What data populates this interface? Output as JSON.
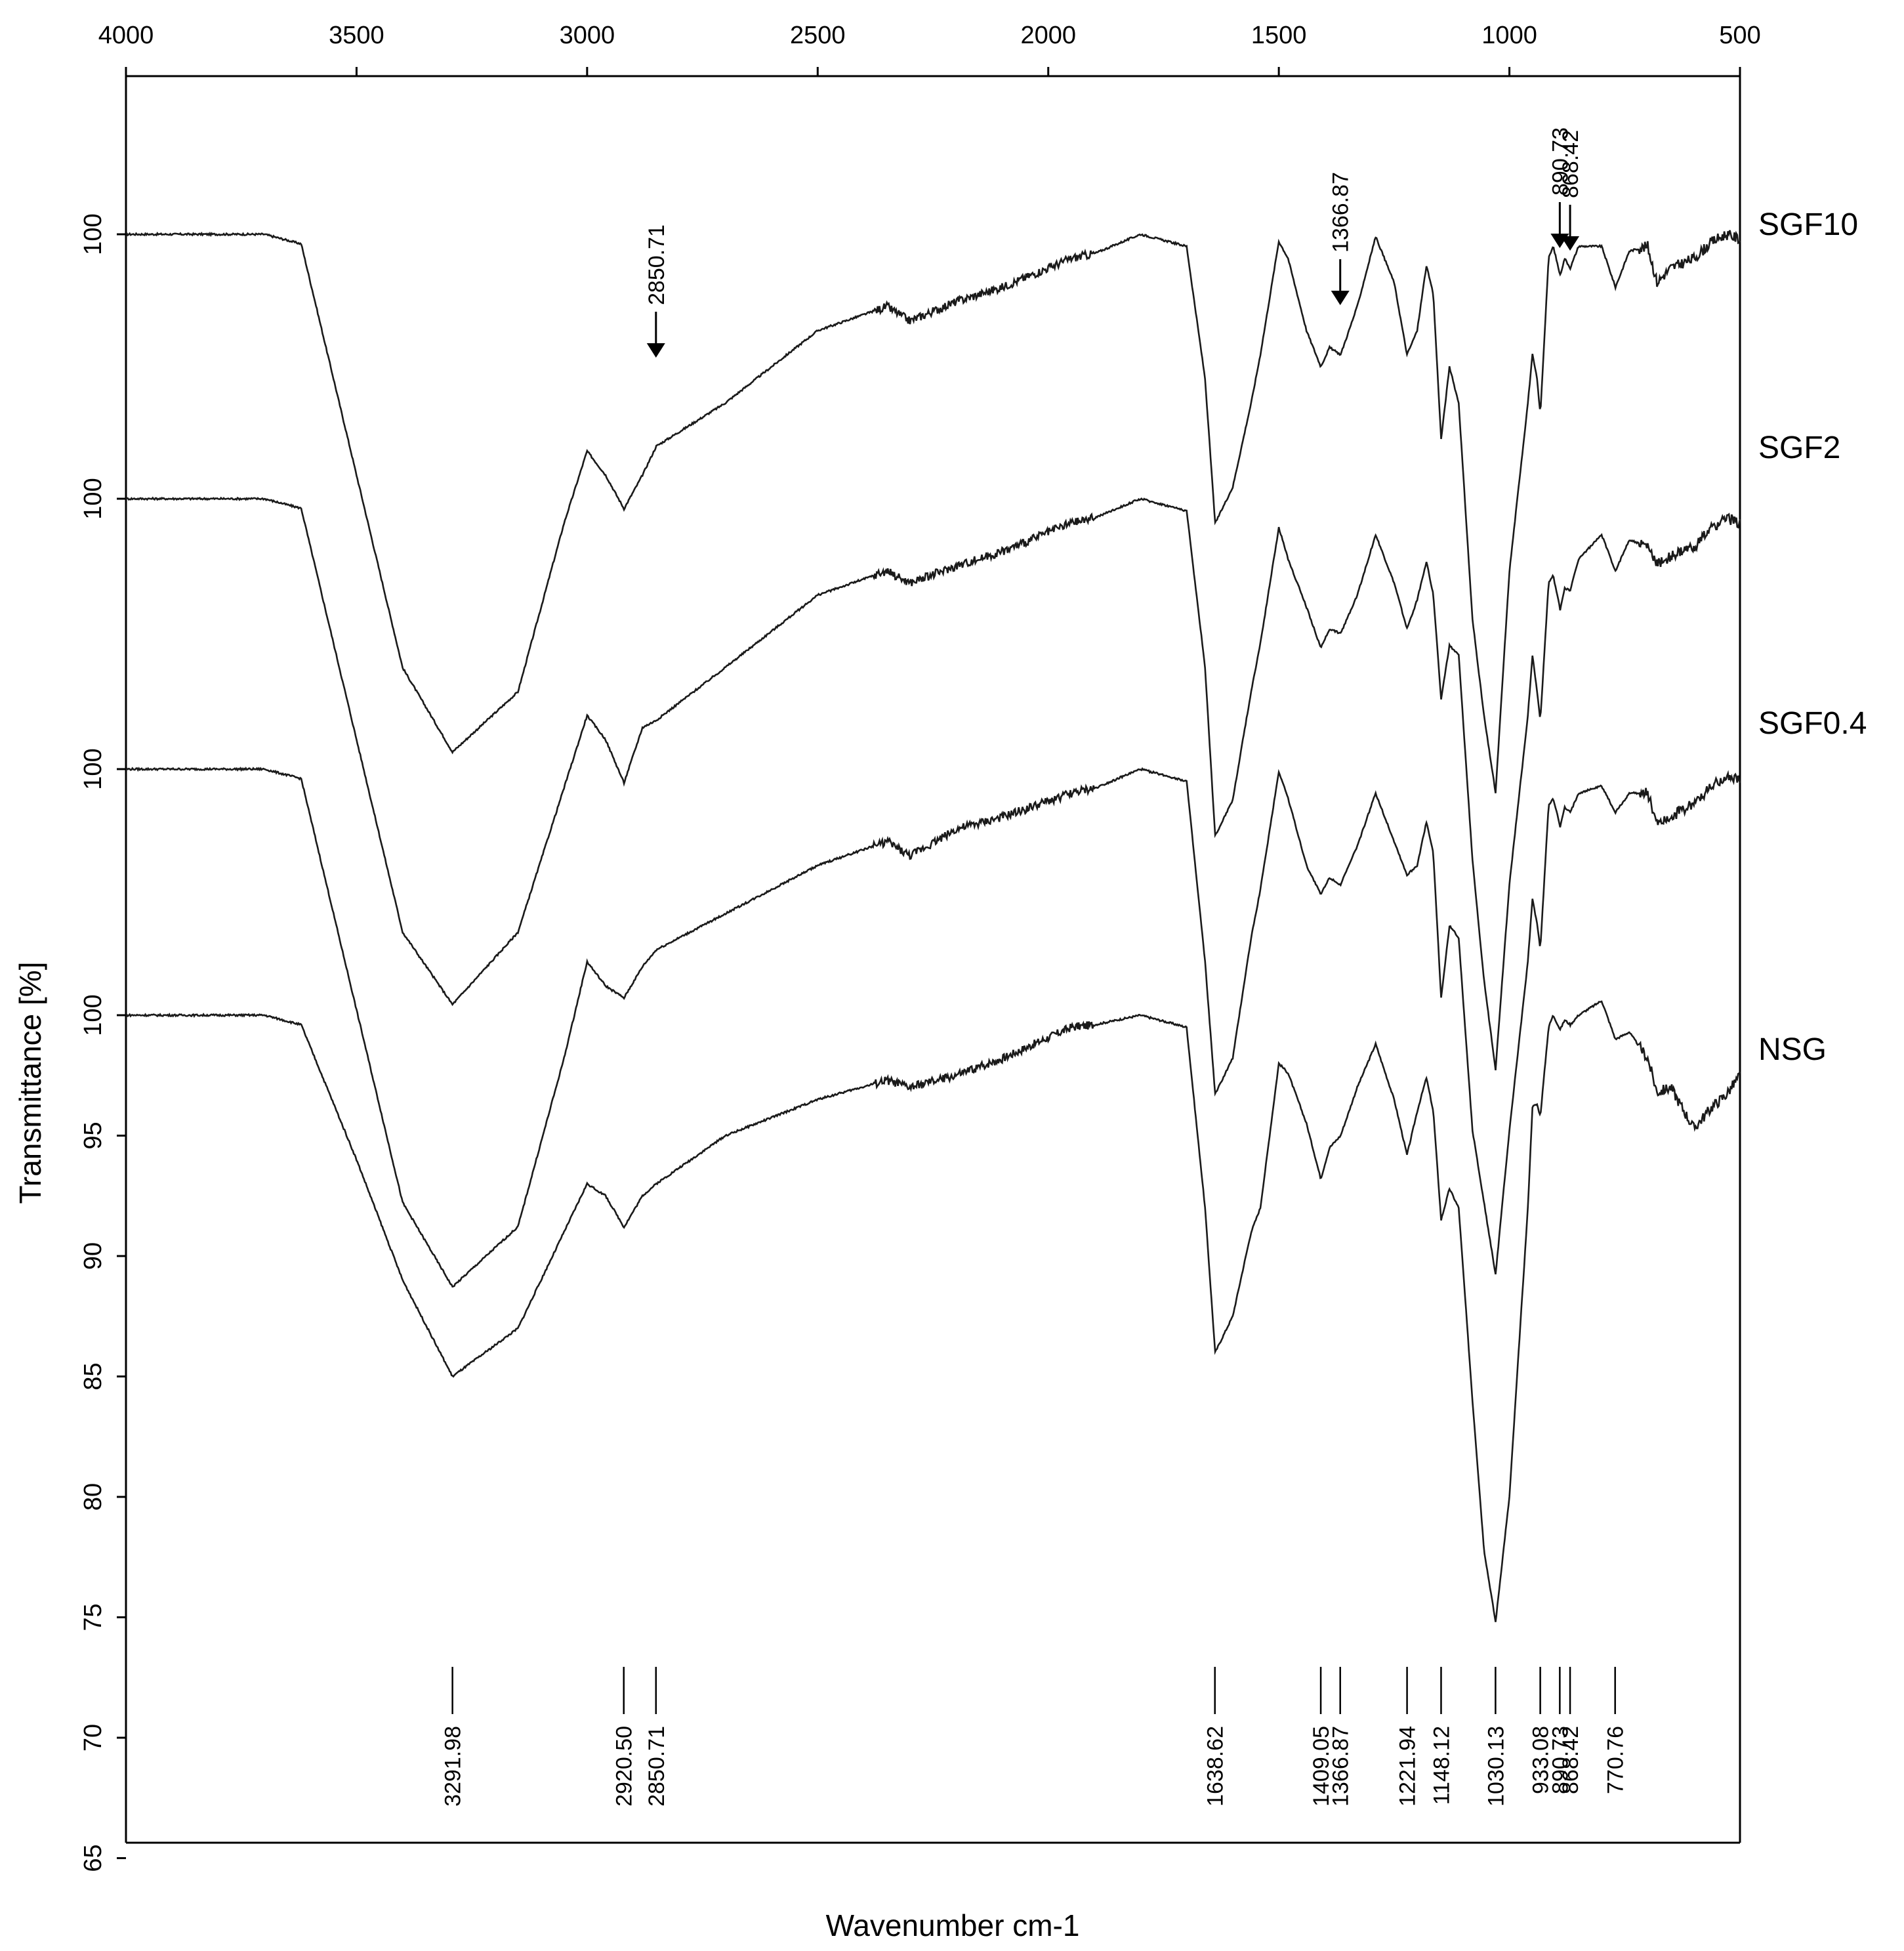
{
  "chart_data": {
    "type": "line",
    "title": "",
    "xlabel": "Wavenumber cm-1",
    "ylabel": "Transmittance [%]",
    "xlim": [
      4000,
      500
    ],
    "x_reversed": true,
    "x_ticks": [
      "4000",
      "3500",
      "3000",
      "2500",
      "2000",
      "1500",
      "1000",
      "500"
    ],
    "ylim": [
      65,
      100
    ],
    "y_ticks": [
      "65",
      "70",
      "75",
      "80",
      "85",
      "90",
      "95",
      "100"
    ],
    "stack_y_labels": [
      "100",
      "100",
      "100"
    ],
    "series": [
      {
        "name": "SGF10",
        "points": [
          [
            4000,
            100
          ],
          [
            3700,
            100
          ],
          [
            3620,
            99.6
          ],
          [
            3500,
            90
          ],
          [
            3400,
            82
          ],
          [
            3292,
            78.5
          ],
          [
            3150,
            81
          ],
          [
            3050,
            88
          ],
          [
            3000,
            91
          ],
          [
            2960,
            90
          ],
          [
            2920,
            88.6
          ],
          [
            2880,
            90
          ],
          [
            2850,
            91.2
          ],
          [
            2700,
            93
          ],
          [
            2500,
            96
          ],
          [
            2350,
            97
          ],
          [
            2300,
            96.4
          ],
          [
            2200,
            97.2
          ],
          [
            2100,
            97.8
          ],
          [
            1950,
            99
          ],
          [
            1900,
            99.2
          ],
          [
            1800,
            100
          ],
          [
            1700,
            99.5
          ],
          [
            1660,
            94
          ],
          [
            1638,
            88
          ],
          [
            1600,
            89.5
          ],
          [
            1560,
            93
          ],
          [
            1540,
            95
          ],
          [
            1500,
            99.7
          ],
          [
            1480,
            99
          ],
          [
            1440,
            96
          ],
          [
            1409,
            94.5
          ],
          [
            1390,
            95.3
          ],
          [
            1366,
            95
          ],
          [
            1330,
            97
          ],
          [
            1290,
            99.9
          ],
          [
            1250,
            98
          ],
          [
            1222,
            95
          ],
          [
            1200,
            96
          ],
          [
            1180,
            98.7
          ],
          [
            1165,
            97.5
          ],
          [
            1148,
            91.5
          ],
          [
            1130,
            94.5
          ],
          [
            1110,
            93
          ],
          [
            1080,
            84
          ],
          [
            1055,
            80
          ],
          [
            1030,
            76.8
          ],
          [
            1000,
            86
          ],
          [
            960,
            93
          ],
          [
            950,
            95
          ],
          [
            940,
            94
          ],
          [
            933,
            92.5
          ],
          [
            915,
            99
          ],
          [
            905,
            99.5
          ],
          [
            890,
            98.3
          ],
          [
            880,
            99
          ],
          [
            868,
            98.6
          ],
          [
            850,
            99.5
          ],
          [
            800,
            99.5
          ],
          [
            770,
            97.8
          ],
          [
            740,
            99.3
          ],
          [
            700,
            99.5
          ],
          [
            680,
            98
          ],
          [
            650,
            98.6
          ],
          [
            600,
            99
          ],
          [
            560,
            99.7
          ],
          [
            530,
            100
          ],
          [
            500,
            99.8
          ]
        ]
      },
      {
        "name": "SGF2",
        "points": [
          [
            4000,
            100
          ],
          [
            3700,
            100
          ],
          [
            3620,
            99.6
          ],
          [
            3500,
            90
          ],
          [
            3400,
            82
          ],
          [
            3292,
            79
          ],
          [
            3150,
            82
          ],
          [
            3050,
            88
          ],
          [
            3000,
            91
          ],
          [
            2960,
            90
          ],
          [
            2920,
            88.2
          ],
          [
            2880,
            90.5
          ],
          [
            2850,
            90.8
          ],
          [
            2700,
            93
          ],
          [
            2500,
            96
          ],
          [
            2350,
            97
          ],
          [
            2300,
            96.5
          ],
          [
            2200,
            97.2
          ],
          [
            2100,
            97.8
          ],
          [
            1950,
            99
          ],
          [
            1900,
            99.2
          ],
          [
            1800,
            100
          ],
          [
            1700,
            99.5
          ],
          [
            1660,
            93
          ],
          [
            1638,
            86
          ],
          [
            1600,
            87.5
          ],
          [
            1560,
            92
          ],
          [
            1540,
            94
          ],
          [
            1500,
            98.8
          ],
          [
            1480,
            97.5
          ],
          [
            1440,
            95.5
          ],
          [
            1409,
            93.8
          ],
          [
            1390,
            94.6
          ],
          [
            1366,
            94.4
          ],
          [
            1330,
            96
          ],
          [
            1290,
            98.5
          ],
          [
            1250,
            96.5
          ],
          [
            1222,
            94.6
          ],
          [
            1200,
            95.8
          ],
          [
            1180,
            97.4
          ],
          [
            1165,
            96
          ],
          [
            1148,
            91.7
          ],
          [
            1130,
            93.9
          ],
          [
            1110,
            93.5
          ],
          [
            1080,
            85
          ],
          [
            1055,
            80
          ],
          [
            1030,
            76.3
          ],
          [
            1000,
            84
          ],
          [
            960,
            91
          ],
          [
            950,
            93.5
          ],
          [
            940,
            92
          ],
          [
            933,
            90.8
          ],
          [
            915,
            96.5
          ],
          [
            905,
            96.8
          ],
          [
            890,
            95.4
          ],
          [
            880,
            96.3
          ],
          [
            868,
            96.2
          ],
          [
            850,
            97.5
          ],
          [
            800,
            98.5
          ],
          [
            770,
            97
          ],
          [
            740,
            98.3
          ],
          [
            700,
            98
          ],
          [
            680,
            97.3
          ],
          [
            650,
            97.6
          ],
          [
            600,
            98
          ],
          [
            560,
            98.8
          ],
          [
            530,
            99.2
          ],
          [
            500,
            99
          ]
        ]
      },
      {
        "name": "SGF0.4",
        "points": [
          [
            4000,
            100
          ],
          [
            3700,
            100
          ],
          [
            3620,
            99.6
          ],
          [
            3500,
            90
          ],
          [
            3400,
            82
          ],
          [
            3292,
            78.5
          ],
          [
            3150,
            81
          ],
          [
            3050,
            88
          ],
          [
            3000,
            92
          ],
          [
            2960,
            91
          ],
          [
            2920,
            90.5
          ],
          [
            2880,
            91.8
          ],
          [
            2850,
            92.5
          ],
          [
            2700,
            94
          ],
          [
            2500,
            96
          ],
          [
            2350,
            97
          ],
          [
            2300,
            96.4
          ],
          [
            2200,
            97.5
          ],
          [
            2100,
            98
          ],
          [
            1950,
            99
          ],
          [
            1900,
            99.2
          ],
          [
            1800,
            100
          ],
          [
            1700,
            99.5
          ],
          [
            1660,
            92
          ],
          [
            1638,
            86.5
          ],
          [
            1600,
            88
          ],
          [
            1560,
            93
          ],
          [
            1540,
            95
          ],
          [
            1500,
            99.9
          ],
          [
            1480,
            98.8
          ],
          [
            1440,
            96
          ],
          [
            1409,
            94.8
          ],
          [
            1390,
            95.5
          ],
          [
            1366,
            95.2
          ],
          [
            1330,
            96.8
          ],
          [
            1290,
            99
          ],
          [
            1250,
            97
          ],
          [
            1222,
            95.6
          ],
          [
            1200,
            96
          ],
          [
            1180,
            97.8
          ],
          [
            1165,
            96.5
          ],
          [
            1148,
            90.5
          ],
          [
            1130,
            93.5
          ],
          [
            1110,
            93
          ],
          [
            1080,
            85
          ],
          [
            1055,
            82
          ],
          [
            1030,
            79
          ],
          [
            1000,
            85
          ],
          [
            960,
            92
          ],
          [
            950,
            94.6
          ],
          [
            940,
            93.6
          ],
          [
            933,
            92.5
          ],
          [
            915,
            98.5
          ],
          [
            905,
            98.8
          ],
          [
            890,
            97.6
          ],
          [
            880,
            98.4
          ],
          [
            868,
            98.2
          ],
          [
            850,
            99
          ],
          [
            800,
            99.3
          ],
          [
            770,
            98.2
          ],
          [
            740,
            99
          ],
          [
            700,
            99
          ],
          [
            680,
            97.8
          ],
          [
            650,
            98
          ],
          [
            600,
            98.6
          ],
          [
            560,
            99.3
          ],
          [
            530,
            99.7
          ],
          [
            500,
            99.5
          ]
        ]
      },
      {
        "name": "NSG",
        "points": [
          [
            4000,
            100
          ],
          [
            3700,
            100
          ],
          [
            3620,
            99.6
          ],
          [
            3500,
            94
          ],
          [
            3400,
            89
          ],
          [
            3292,
            85
          ],
          [
            3150,
            87
          ],
          [
            3050,
            91
          ],
          [
            3000,
            93
          ],
          [
            2960,
            92.5
          ],
          [
            2920,
            91.2
          ],
          [
            2880,
            92.5
          ],
          [
            2850,
            93
          ],
          [
            2700,
            95
          ],
          [
            2500,
            96.5
          ],
          [
            2350,
            97.3
          ],
          [
            2300,
            97
          ],
          [
            2200,
            97.5
          ],
          [
            2100,
            98.2
          ],
          [
            1950,
            99.5
          ],
          [
            1900,
            99.6
          ],
          [
            1800,
            100
          ],
          [
            1700,
            99.5
          ],
          [
            1660,
            92
          ],
          [
            1638,
            86
          ],
          [
            1600,
            87.5
          ],
          [
            1560,
            91
          ],
          [
            1540,
            92
          ],
          [
            1500,
            98
          ],
          [
            1480,
            97.6
          ],
          [
            1440,
            95.5
          ],
          [
            1409,
            93.2
          ],
          [
            1390,
            94.5
          ],
          [
            1366,
            95
          ],
          [
            1330,
            97
          ],
          [
            1290,
            98.8
          ],
          [
            1250,
            96.5
          ],
          [
            1222,
            94.2
          ],
          [
            1200,
            96
          ],
          [
            1180,
            97.4
          ],
          [
            1165,
            96
          ],
          [
            1148,
            91.5
          ],
          [
            1130,
            92.8
          ],
          [
            1110,
            92
          ],
          [
            1080,
            84
          ],
          [
            1055,
            77.8
          ],
          [
            1030,
            74.8
          ],
          [
            1000,
            80
          ],
          [
            960,
            92
          ],
          [
            950,
            96.2
          ],
          [
            940,
            96.3
          ],
          [
            933,
            95.8
          ],
          [
            915,
            99.5
          ],
          [
            905,
            100
          ],
          [
            890,
            99.4
          ],
          [
            880,
            99.8
          ],
          [
            868,
            99.6
          ],
          [
            850,
            100
          ],
          [
            800,
            100.6
          ],
          [
            770,
            99
          ],
          [
            740,
            99.3
          ],
          [
            700,
            98.2
          ],
          [
            680,
            96.8
          ],
          [
            650,
            97
          ],
          [
            600,
            95.3
          ],
          [
            560,
            96.2
          ],
          [
            530,
            96.7
          ],
          [
            500,
            97.5
          ]
        ]
      }
    ],
    "peak_labels": [
      "3291.98",
      "2920.50",
      "2850.71",
      "1638.62",
      "1409.05",
      "1366.87",
      "1221.94",
      "1148.12",
      "1030.13",
      "933.08",
      "890.73",
      "868.42",
      "770.76"
    ],
    "peak_positions": [
      3291.98,
      2920.5,
      2850.71,
      1638.62,
      1409.05,
      1366.87,
      1221.94,
      1148.12,
      1030.13,
      933.08,
      890.73,
      868.42,
      770.76
    ],
    "annotations": [
      {
        "label": "2850.71",
        "x": 2850.71
      },
      {
        "label": "1366.87",
        "x": 1366.87
      },
      {
        "label": "890.73",
        "x": 890.73
      },
      {
        "label": "868.42",
        "x": 868.42
      }
    ],
    "grid": false,
    "legend": "labels at right end of each curve"
  }
}
